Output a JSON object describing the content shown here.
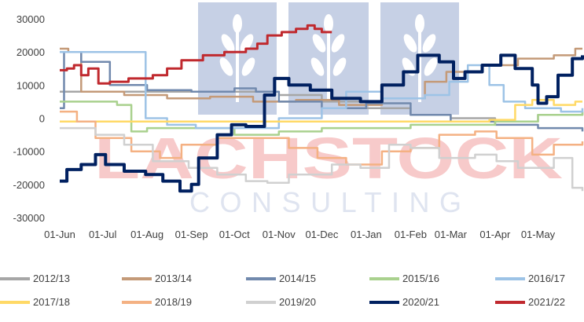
{
  "watermark": {
    "line1": "LACHSTOCK",
    "line2": "CONSULTING",
    "logo": "wheat-sheaf-icon"
  },
  "chart_data": {
    "type": "line",
    "title": "",
    "xlabel": "",
    "ylabel": "",
    "ylim": [
      -30000,
      30000
    ],
    "yticks": [
      30000,
      20000,
      10000,
      0,
      -10000,
      -20000,
      -30000
    ],
    "ytick_labels": [
      "30000",
      "20000",
      "10000",
      "0",
      "-10000",
      "-20000",
      "-30000"
    ],
    "xlim": [
      0,
      365
    ],
    "xticks": [
      0,
      30,
      61,
      92,
      122,
      153,
      183,
      214,
      245,
      273,
      304,
      334
    ],
    "xtick_labels": [
      "01-Jun",
      "01-Jul",
      "01-Aug",
      "01-Sep",
      "01-Oct",
      "01-Nov",
      "01-Dec",
      "01-Jan",
      "01-Feb",
      "01-Mar",
      "01-Apr",
      "01-May"
    ],
    "grid": false,
    "legend_position": "bottom",
    "series": [
      {
        "name": "2012/13",
        "color": "#a6a6a6",
        "width": 2.5,
        "points": [
          [
            0,
            8000
          ],
          [
            30,
            8000
          ],
          [
            61,
            8000
          ],
          [
            92,
            8000
          ],
          [
            122,
            8000
          ],
          [
            153,
            7000
          ],
          [
            183,
            5000
          ],
          [
            214,
            3000
          ],
          [
            245,
            1000
          ],
          [
            273,
            0
          ],
          [
            304,
            -1000
          ],
          [
            334,
            1000
          ],
          [
            365,
            2000
          ]
        ]
      },
      {
        "name": "2013/14",
        "color": "#c49a78",
        "width": 2.5,
        "points": [
          [
            0,
            21000
          ],
          [
            6,
            20000
          ],
          [
            15,
            8000
          ],
          [
            45,
            7000
          ],
          [
            75,
            6000
          ],
          [
            105,
            6500
          ],
          [
            135,
            5000
          ],
          [
            165,
            5500
          ],
          [
            195,
            4000
          ],
          [
            225,
            6000
          ],
          [
            255,
            11000
          ],
          [
            270,
            14000
          ],
          [
            295,
            16000
          ],
          [
            320,
            18000
          ],
          [
            345,
            19000
          ],
          [
            360,
            21000
          ],
          [
            365,
            21000
          ]
        ]
      },
      {
        "name": "2014/15",
        "color": "#7189ad",
        "width": 2.5,
        "points": [
          [
            0,
            3000
          ],
          [
            3,
            20000
          ],
          [
            15,
            17000
          ],
          [
            35,
            10000
          ],
          [
            61,
            8500
          ],
          [
            92,
            8000
          ],
          [
            122,
            9000
          ],
          [
            137,
            8000
          ],
          [
            153,
            5000
          ],
          [
            183,
            3000
          ],
          [
            214,
            4500
          ],
          [
            245,
            1000
          ],
          [
            273,
            -1000
          ],
          [
            304,
            -2000
          ],
          [
            334,
            -3000
          ],
          [
            365,
            -4000
          ]
        ]
      },
      {
        "name": "2015/16",
        "color": "#a9d18e",
        "width": 2.5,
        "points": [
          [
            0,
            5000
          ],
          [
            30,
            5000
          ],
          [
            40,
            4000
          ],
          [
            50,
            -4000
          ],
          [
            61,
            -3000
          ],
          [
            92,
            -3000
          ],
          [
            122,
            -5000
          ],
          [
            153,
            -4000
          ],
          [
            183,
            -3000
          ],
          [
            214,
            -3000
          ],
          [
            245,
            -2000
          ],
          [
            273,
            -2000
          ],
          [
            304,
            -1000
          ],
          [
            334,
            1000
          ],
          [
            365,
            2000
          ]
        ]
      },
      {
        "name": "2016/17",
        "color": "#9dc3e6",
        "width": 2.5,
        "points": [
          [
            0,
            20000
          ],
          [
            58,
            20000
          ],
          [
            60,
            0
          ],
          [
            75,
            -2000
          ],
          [
            95,
            -3000
          ],
          [
            122,
            -3000
          ],
          [
            153,
            0
          ],
          [
            183,
            3000
          ],
          [
            200,
            8000
          ],
          [
            225,
            6000
          ],
          [
            255,
            7000
          ],
          [
            272,
            11000
          ],
          [
            285,
            16000
          ],
          [
            300,
            10000
          ],
          [
            310,
            5000
          ],
          [
            325,
            3000
          ],
          [
            350,
            2000
          ],
          [
            365,
            3000
          ]
        ]
      },
      {
        "name": "2017/18",
        "color": "#ffd966",
        "width": 2.5,
        "points": [
          [
            0,
            -1000
          ],
          [
            30,
            -1000
          ],
          [
            61,
            -1000
          ],
          [
            92,
            -1000
          ],
          [
            122,
            -1000
          ],
          [
            153,
            -1000
          ],
          [
            183,
            -1000
          ],
          [
            214,
            -1000
          ],
          [
            245,
            -1000
          ],
          [
            273,
            -1000
          ],
          [
            300,
            -500
          ],
          [
            318,
            4000
          ],
          [
            330,
            5500
          ],
          [
            345,
            4000
          ],
          [
            360,
            5000
          ],
          [
            365,
            5000
          ]
        ]
      },
      {
        "name": "2018/19",
        "color": "#f4b183",
        "width": 2.5,
        "points": [
          [
            0,
            2000
          ],
          [
            12,
            -1000
          ],
          [
            25,
            -6000
          ],
          [
            50,
            -10000
          ],
          [
            70,
            -12000
          ],
          [
            85,
            -8000
          ],
          [
            110,
            -6000
          ],
          [
            135,
            -6000
          ],
          [
            160,
            -9000
          ],
          [
            180,
            -12000
          ],
          [
            200,
            -14000
          ],
          [
            225,
            -10000
          ],
          [
            245,
            -9000
          ],
          [
            265,
            -5000
          ],
          [
            290,
            -4000
          ],
          [
            305,
            -6000
          ],
          [
            330,
            -11000
          ],
          [
            345,
            -8000
          ],
          [
            365,
            -7000
          ]
        ]
      },
      {
        "name": "2019/20",
        "color": "#d0d0d0",
        "width": 2.5,
        "points": [
          [
            0,
            -3000
          ],
          [
            25,
            -5000
          ],
          [
            45,
            -8000
          ],
          [
            65,
            -13000
          ],
          [
            90,
            -15000
          ],
          [
            110,
            -17000
          ],
          [
            130,
            -19000
          ],
          [
            145,
            -19500
          ],
          [
            160,
            -17000
          ],
          [
            190,
            -14000
          ],
          [
            210,
            -15000
          ],
          [
            230,
            -8000
          ],
          [
            245,
            -9000
          ],
          [
            265,
            -12000
          ],
          [
            290,
            -11000
          ],
          [
            305,
            -13000
          ],
          [
            320,
            -15000
          ],
          [
            345,
            -12000
          ],
          [
            358,
            -21000
          ],
          [
            365,
            -22000
          ]
        ]
      },
      {
        "name": "2020/21",
        "color": "#002060",
        "width": 4,
        "points": [
          [
            0,
            -19000
          ],
          [
            5,
            -15500
          ],
          [
            15,
            -14000
          ],
          [
            25,
            -11000
          ],
          [
            32,
            -14000
          ],
          [
            45,
            -16000
          ],
          [
            60,
            -17000
          ],
          [
            72,
            -19000
          ],
          [
            84,
            -22000
          ],
          [
            92,
            -20000
          ],
          [
            97,
            -12000
          ],
          [
            110,
            -5000
          ],
          [
            120,
            -2000
          ],
          [
            130,
            -2500
          ],
          [
            143,
            7000
          ],
          [
            150,
            12000
          ],
          [
            160,
            10000
          ],
          [
            175,
            8500
          ],
          [
            190,
            6000
          ],
          [
            210,
            5000
          ],
          [
            225,
            10000
          ],
          [
            240,
            14000
          ],
          [
            250,
            19000
          ],
          [
            265,
            17000
          ],
          [
            275,
            12000
          ],
          [
            283,
            14000
          ],
          [
            295,
            16000
          ],
          [
            308,
            19000
          ],
          [
            318,
            15000
          ],
          [
            330,
            10000
          ],
          [
            334,
            4500
          ],
          [
            340,
            6500
          ],
          [
            348,
            13000
          ],
          [
            358,
            18000
          ],
          [
            365,
            19000
          ]
        ]
      },
      {
        "name": "2021/22",
        "color": "#c0292e",
        "width": 3,
        "points": [
          [
            0,
            14500
          ],
          [
            5,
            15000
          ],
          [
            10,
            16000
          ],
          [
            15,
            13000
          ],
          [
            20,
            15000
          ],
          [
            27,
            10500
          ],
          [
            35,
            11000
          ],
          [
            48,
            12000
          ],
          [
            65,
            13000
          ],
          [
            75,
            15000
          ],
          [
            85,
            17500
          ],
          [
            100,
            19000
          ],
          [
            115,
            20000
          ],
          [
            130,
            21000
          ],
          [
            138,
            22500
          ],
          [
            145,
            25000
          ],
          [
            155,
            26000
          ],
          [
            165,
            27000
          ],
          [
            173,
            28000
          ],
          [
            178,
            27000
          ],
          [
            183,
            26000
          ],
          [
            190,
            26000
          ]
        ]
      }
    ]
  }
}
